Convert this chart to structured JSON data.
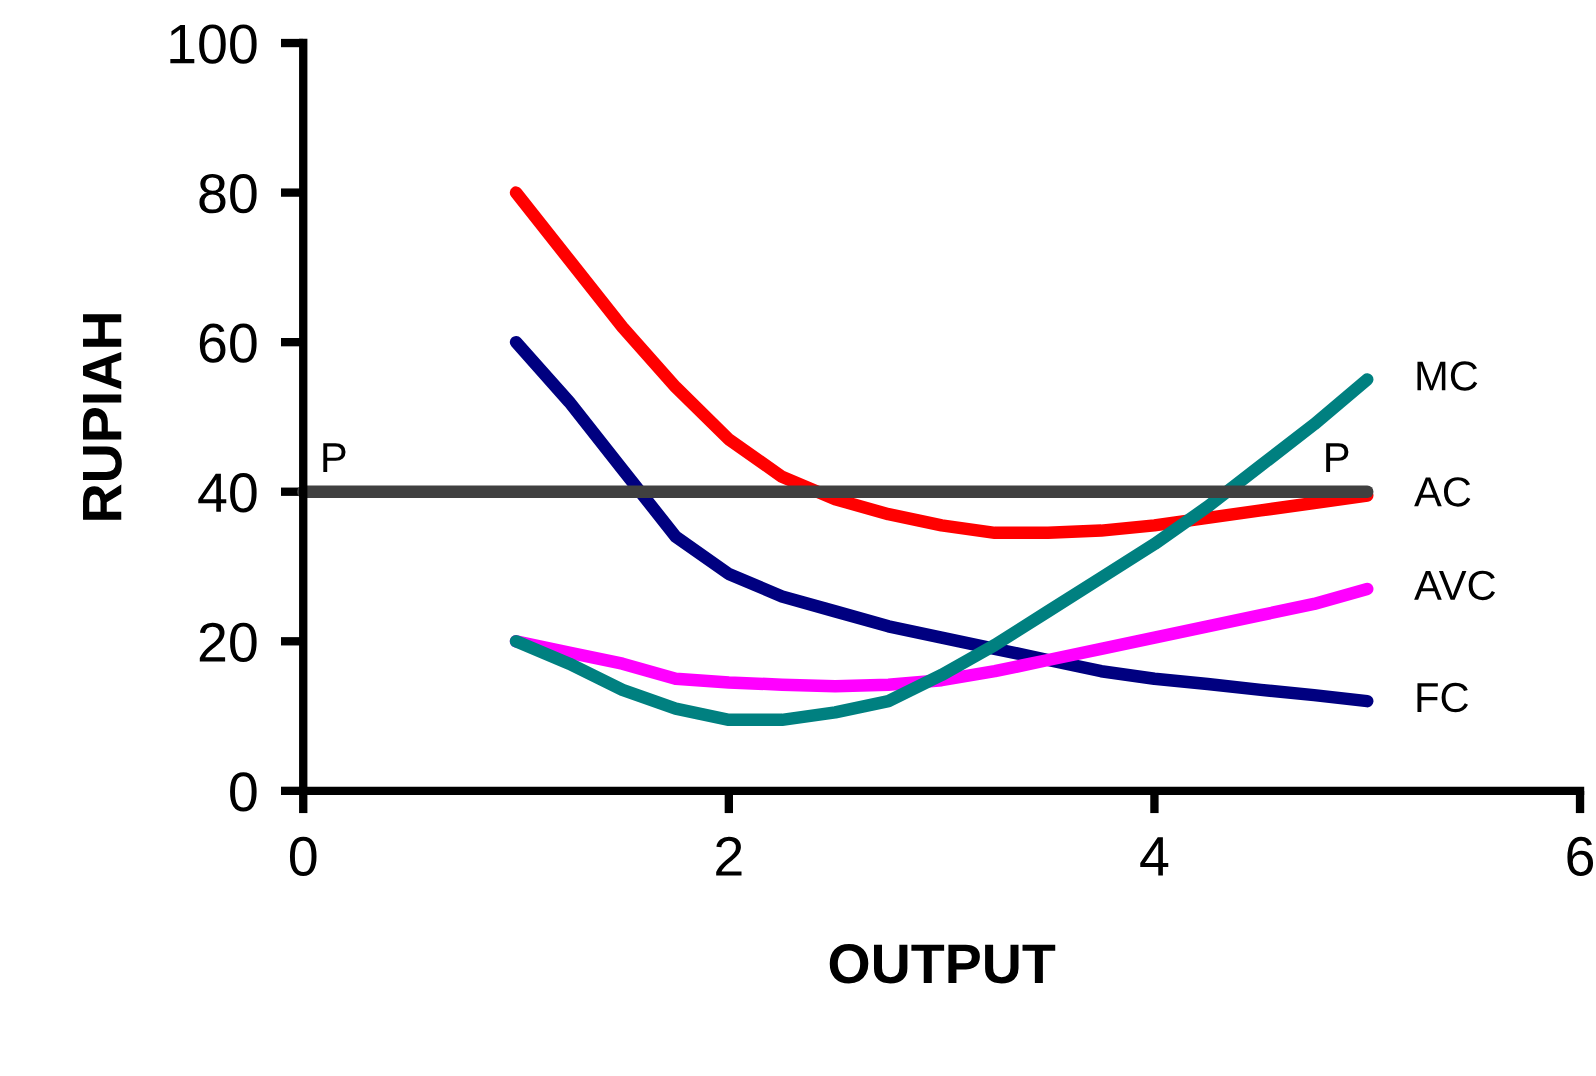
{
  "chart_data": {
    "type": "line",
    "xlabel": "OUTPUT",
    "ylabel": "RUPIAH",
    "xlim": [
      0,
      6
    ],
    "ylim": [
      0,
      100
    ],
    "xticks": [
      0,
      2,
      4,
      6
    ],
    "yticks": [
      0,
      20,
      40,
      60,
      80,
      100
    ],
    "grid": false,
    "legend": false,
    "marker": "none",
    "line_style": "solid",
    "x": [
      1,
      1.25,
      1.5,
      1.75,
      2,
      2.25,
      2.5,
      2.75,
      3,
      3.25,
      3.5,
      3.75,
      4,
      4.25,
      4.5,
      4.75,
      5
    ],
    "series": [
      {
        "name": "AC",
        "color": "#ff0000",
        "values": [
          80,
          71,
          62,
          54,
          47,
          42,
          39,
          37,
          35.5,
          34.5,
          34.5,
          34.8,
          35.5,
          36.5,
          37.5,
          38.5,
          39.5
        ]
      },
      {
        "name": "FC",
        "color": "#000080",
        "values": [
          60,
          52,
          43,
          34,
          29,
          26,
          24,
          22,
          20.5,
          19,
          17.5,
          16,
          15,
          14.3,
          13.5,
          12.8,
          12
        ]
      },
      {
        "name": "AVC",
        "color": "#ff00ff",
        "values": [
          20,
          18.5,
          17,
          15,
          14.5,
          14.2,
          14,
          14.2,
          14.8,
          16,
          17.5,
          19,
          20.5,
          22,
          23.5,
          25,
          27
        ]
      },
      {
        "name": "MC",
        "color": "#008080",
        "values": [
          20,
          17,
          13.5,
          11,
          9.5,
          9.5,
          10.5,
          12,
          15.5,
          19.5,
          24,
          28.5,
          33,
          38,
          43.5,
          49,
          55
        ]
      },
      {
        "color": "#404040",
        "x": [
          0,
          5
        ],
        "values": [
          40,
          40
        ]
      }
    ],
    "annotations": [
      "P",
      "P"
    ]
  }
}
